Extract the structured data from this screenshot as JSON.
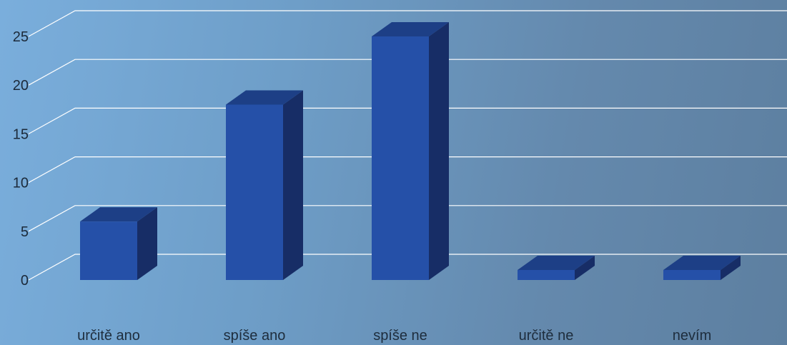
{
  "chart_data": {
    "type": "bar",
    "categories": [
      "určitě ano",
      "spíše ano",
      "spíše ne",
      "určitě ne",
      "nevím"
    ],
    "values": [
      6,
      18,
      25,
      1,
      1
    ],
    "ylim": [
      0,
      25
    ],
    "yticks": [
      0,
      5,
      10,
      15,
      20,
      25
    ],
    "grid": true,
    "colors": {
      "bar_front": "#2550a8",
      "bar_top": "#1d3f86",
      "bar_side": "#172d66",
      "gridline": "#ffffff"
    }
  }
}
